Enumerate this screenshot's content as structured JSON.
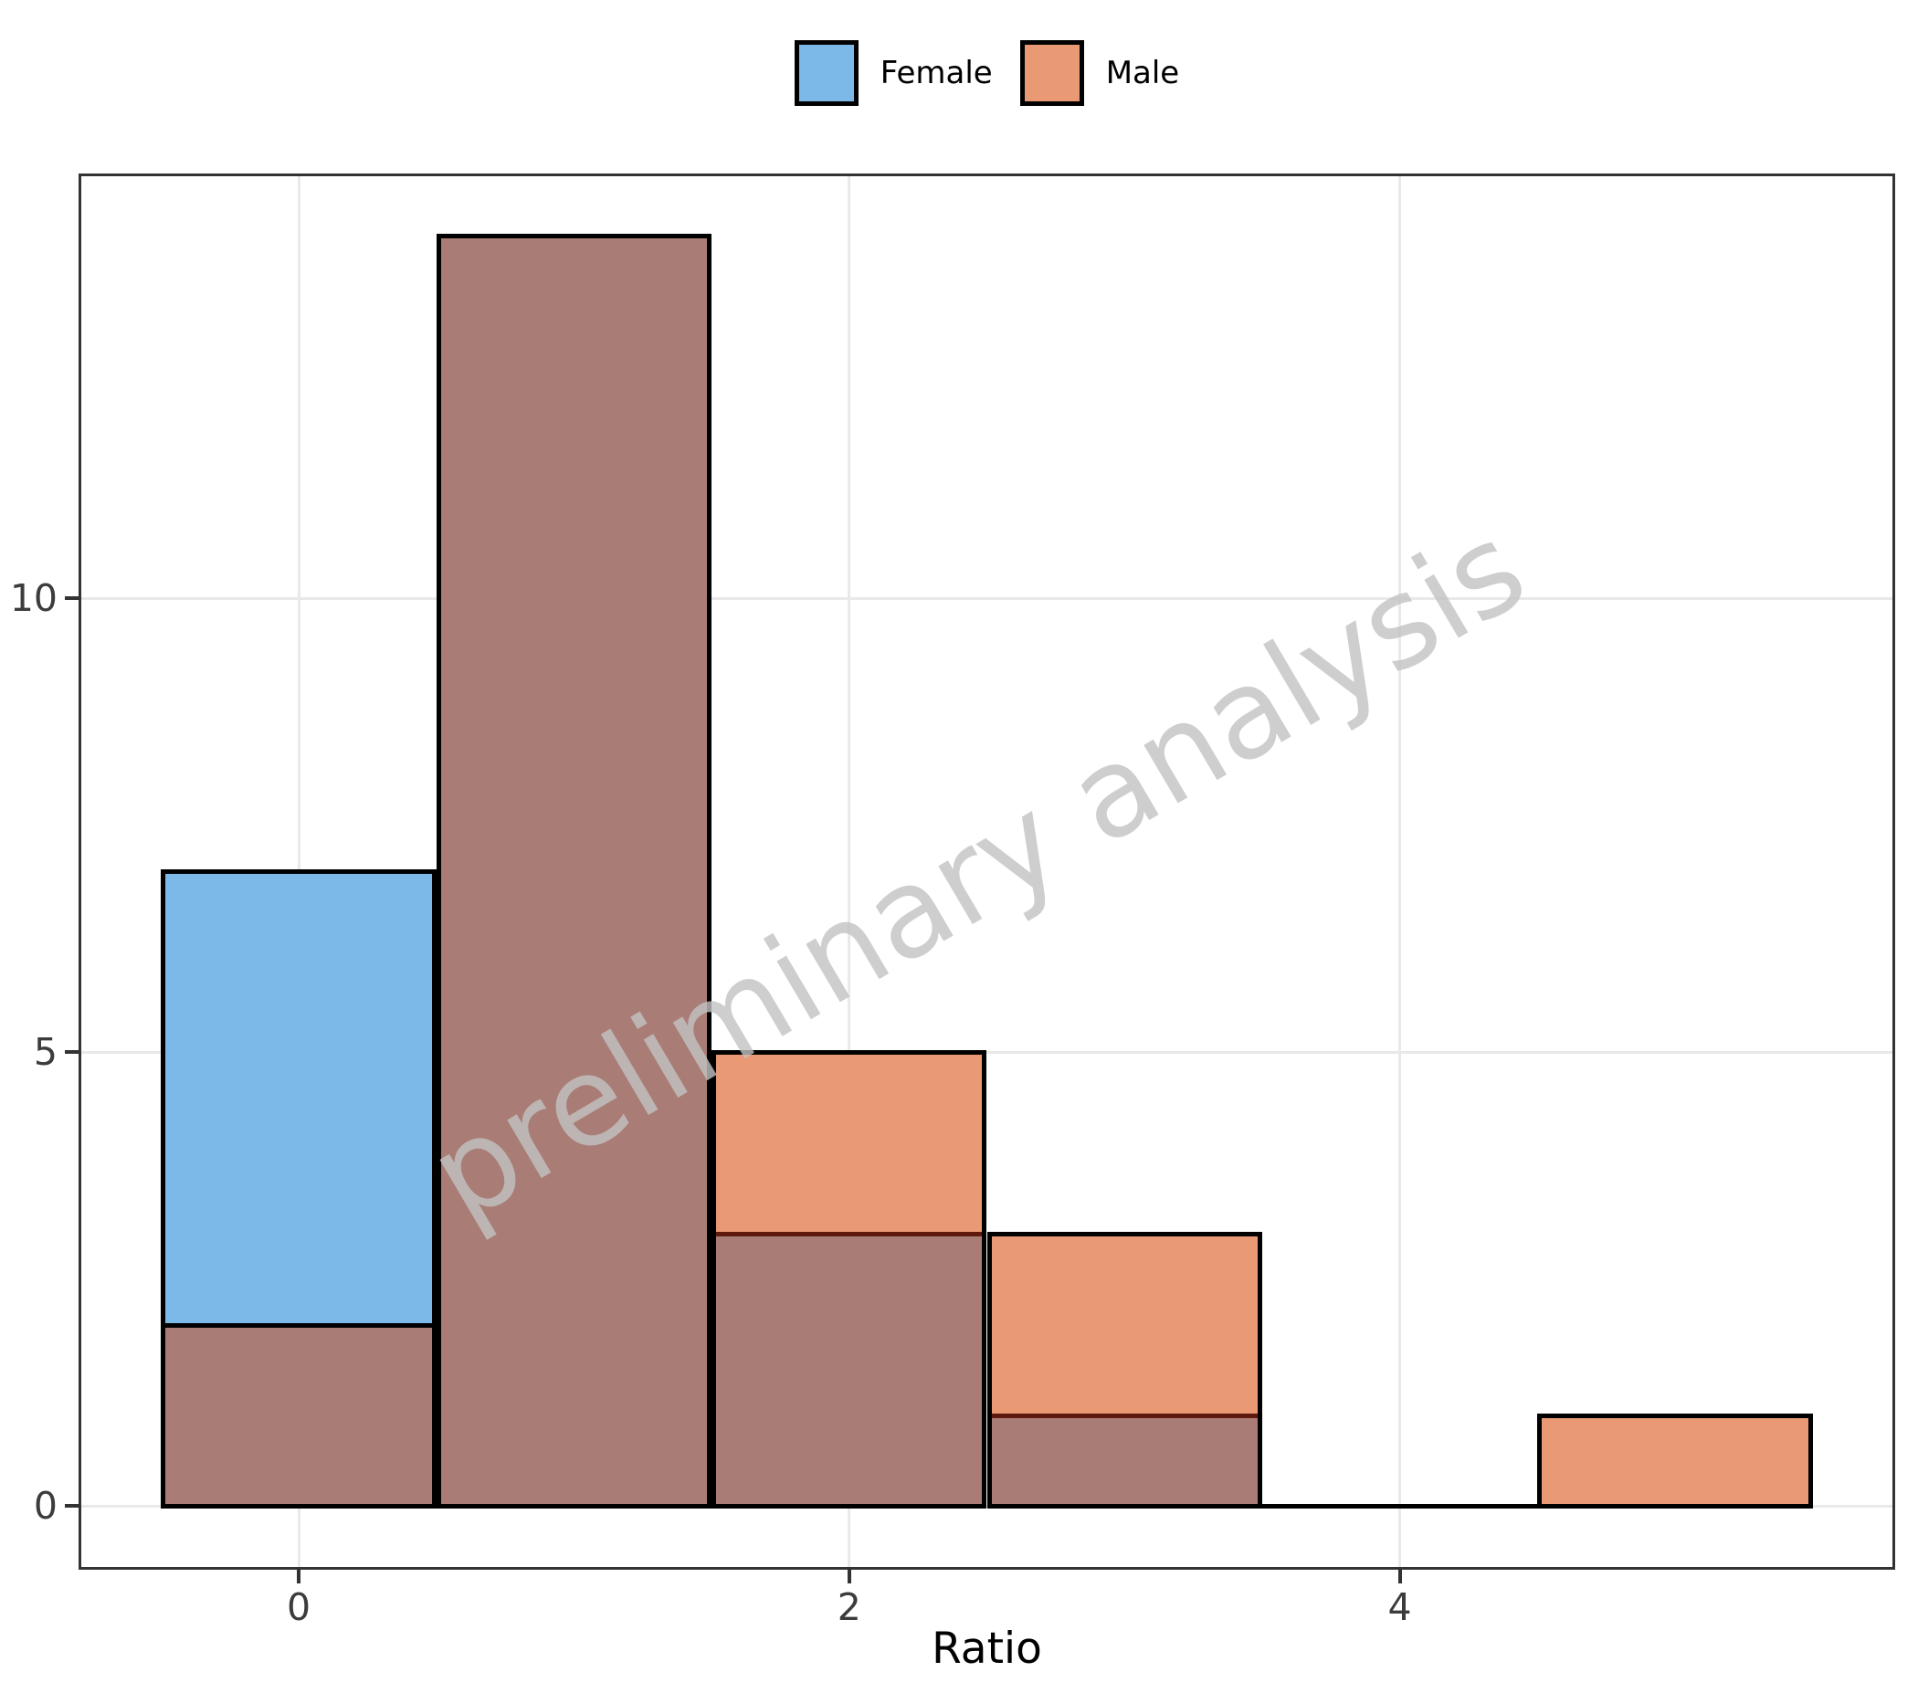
{
  "watermark": {
    "text": "preliminary analysis",
    "color": "#c3c3c3",
    "opacity": 0.8,
    "rotation_deg": -30.5
  },
  "chart_data": {
    "type": "histogram",
    "title": "",
    "xlabel": "Ratio",
    "ylabel": "",
    "bin_edges": [
      -0.5,
      0.5,
      1.5,
      2.5,
      3.5,
      4.5,
      5.5
    ],
    "series": [
      {
        "name": "Female",
        "color": "#7DB9E8",
        "values": [
          7,
          14,
          3,
          1,
          0,
          0
        ]
      },
      {
        "name": "Male",
        "color": "#E99A75",
        "values": [
          2,
          14,
          5,
          3,
          0,
          1
        ]
      }
    ],
    "overlap_color": "#A97D76",
    "bar_edge_color": "#000000",
    "inner_divider_color": "#5E1B0D",
    "x_ticks": [
      0,
      2,
      4
    ],
    "y_ticks": [
      0,
      5,
      10
    ],
    "xlim": [
      -0.8,
      5.8
    ],
    "ylim": [
      -0.7,
      14.68
    ],
    "grid": true,
    "grid_color": "#e9e9e9",
    "axis_color": "#333333",
    "tick_label_color": "#3c3c3c",
    "legend_position": "top-center"
  }
}
